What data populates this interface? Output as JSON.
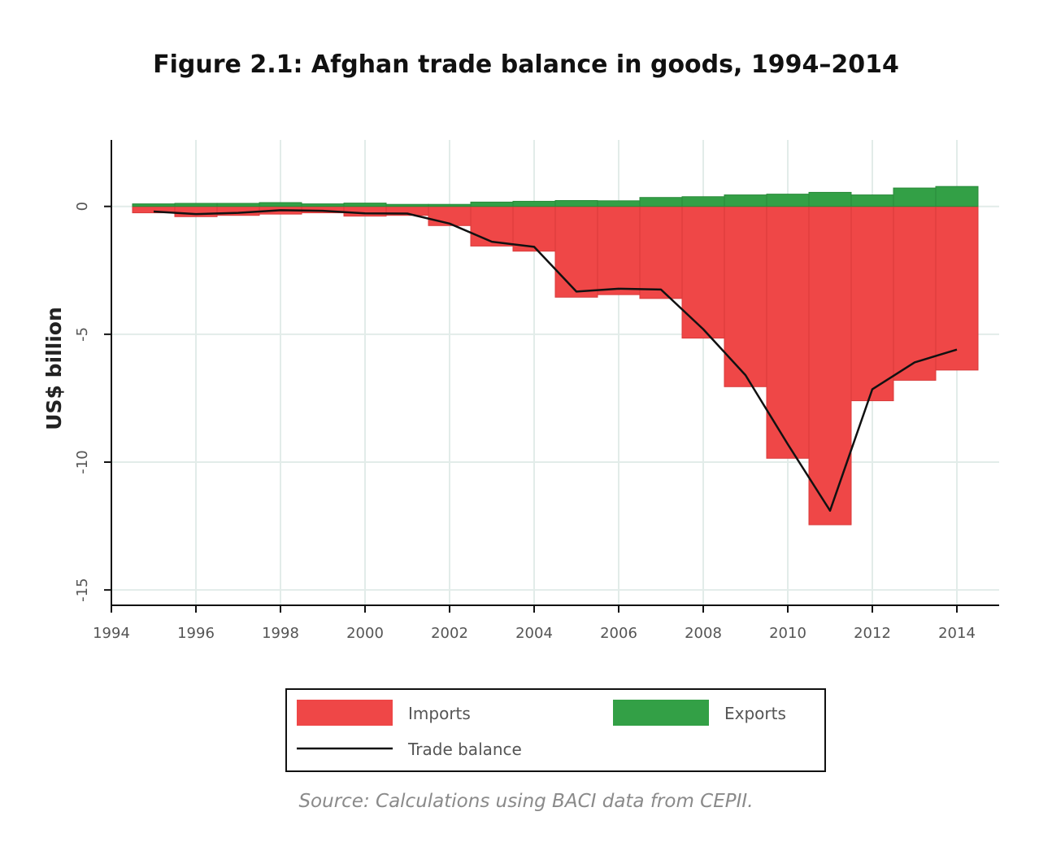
{
  "chart_data": {
    "type": "bar",
    "title": "Figure 2.1: Afghan trade balance in goods, 1994–2014",
    "xlabel": "",
    "ylabel": "US$ billion",
    "xlim": [
      1994,
      2015
    ],
    "ylim": [
      -15.6,
      2.6
    ],
    "x_ticks": [
      1994,
      1996,
      1998,
      2000,
      2002,
      2004,
      2006,
      2008,
      2010,
      2012,
      2014
    ],
    "x_tick_labels": [
      "1994",
      "1996",
      "1998",
      "2000",
      "2002",
      "2004",
      "2006",
      "2008",
      "2010",
      "2012",
      "2014"
    ],
    "y_ticks": [
      0,
      -5,
      -10,
      -15
    ],
    "y_tick_labels": [
      "0",
      "-5",
      "-10",
      "-15"
    ],
    "grid": true,
    "legend_position": "bottom",
    "x": [
      1995,
      1996,
      1997,
      1998,
      1999,
      2000,
      2001,
      2002,
      2003,
      2004,
      2005,
      2006,
      2007,
      2008,
      2009,
      2010,
      2011,
      2012,
      2013,
      2014
    ],
    "series": [
      {
        "name": "Imports",
        "kind": "bar",
        "color": "#ef4747",
        "values": [
          -0.25,
          -0.4,
          -0.35,
          -0.3,
          -0.25,
          -0.38,
          -0.35,
          -0.75,
          -1.55,
          -1.75,
          -3.55,
          -3.45,
          -3.6,
          -5.15,
          -7.05,
          -9.85,
          -12.45,
          -7.6,
          -6.8,
          -6.4
        ]
      },
      {
        "name": "Exports",
        "kind": "bar",
        "color": "#33a046",
        "values": [
          0.1,
          0.12,
          0.12,
          0.15,
          0.1,
          0.13,
          0.08,
          0.08,
          0.17,
          0.2,
          0.23,
          0.22,
          0.35,
          0.38,
          0.45,
          0.48,
          0.55,
          0.45,
          0.72,
          0.78
        ]
      },
      {
        "name": "Trade balance",
        "kind": "line",
        "color": "#111111",
        "values": [
          -0.2,
          -0.3,
          -0.25,
          -0.15,
          -0.17,
          -0.27,
          -0.28,
          -0.67,
          -1.38,
          -1.58,
          -3.33,
          -3.22,
          -3.25,
          -4.8,
          -6.6,
          -9.3,
          -11.9,
          -7.15,
          -6.1,
          -5.6
        ]
      }
    ]
  },
  "source": "Source: Calculations using BACI data from CEPII."
}
